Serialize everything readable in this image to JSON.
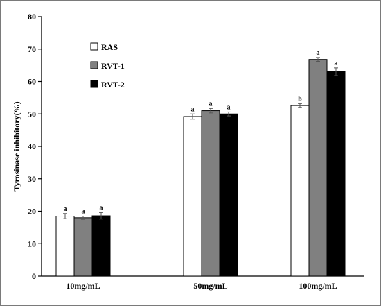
{
  "chart_data": {
    "type": "bar",
    "title": "",
    "xlabel": "",
    "ylabel": "Tyrosinase inhibitory(%)",
    "ylim": [
      0,
      80
    ],
    "yticks": [
      0,
      10,
      20,
      30,
      40,
      50,
      60,
      70,
      80
    ],
    "categories": [
      "10mg/mL",
      "50mg/mL",
      "100mg/mL"
    ],
    "series": [
      {
        "name": "RAS",
        "color": "#ffffff",
        "values": [
          18.5,
          49.2,
          52.6
        ],
        "errors": [
          0.8,
          0.8,
          0.6
        ],
        "labels": [
          "a",
          "a",
          "b"
        ]
      },
      {
        "name": "RVT-1",
        "color": "#808080",
        "values": [
          18.0,
          51.0,
          66.8
        ],
        "errors": [
          0.5,
          0.7,
          0.6
        ],
        "labels": [
          "a",
          "a",
          "a"
        ]
      },
      {
        "name": "RVT-2",
        "color": "#000000",
        "values": [
          18.6,
          50.0,
          63.0
        ],
        "errors": [
          1.0,
          0.6,
          1.2
        ],
        "labels": [
          "a",
          "a",
          "a"
        ]
      }
    ],
    "legend_position": "top-left",
    "grid": false
  }
}
